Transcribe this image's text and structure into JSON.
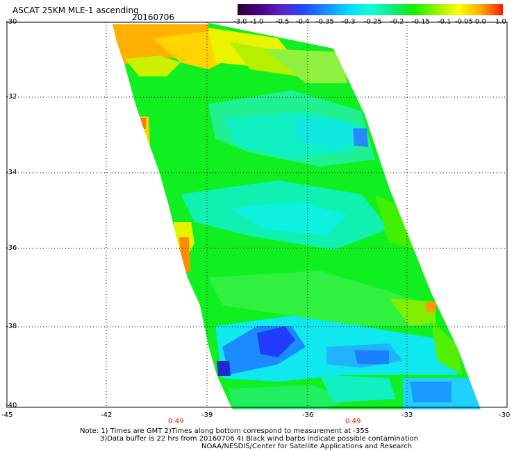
{
  "header": {
    "title": "ASCAT 25KM MLE-1 ascending",
    "date": "20160706"
  },
  "colorbar": {
    "labels": [
      "-3.0",
      "-1.0",
      "-0.5",
      "-0.4",
      "-0.35",
      "-0.3",
      "-0.25",
      "-0.2",
      "-0.15",
      "-0.1",
      "-0.05",
      "0.0",
      "1.0"
    ],
    "colors": [
      "#2a0030",
      "#4b0082",
      "#5a22c8",
      "#1f4bff",
      "#1a8cff",
      "#00d8ff",
      "#10ffd8",
      "#10e880",
      "#14f000",
      "#9af000",
      "#ffff00",
      "#ffaa00",
      "#ff1a00"
    ]
  },
  "axes": {
    "lat_labels": [
      "-30",
      "-32",
      "-34",
      "-36",
      "-38",
      "-40"
    ],
    "lon_labels": [
      "-45",
      "-42",
      "-39",
      "-36",
      "-33",
      "-30"
    ]
  },
  "times": [
    "0:49",
    "0:49"
  ],
  "notes": [
    "Note: 1) Times are GMT 2)Times along bottom correspond to measurement at -35S",
    "3)Data buffer is 22 hrs from 20160706 4) Black wind barbs indicate possible contamination",
    "NOAA/NESDIS/Center for Satellite Applications and Research"
  ]
}
